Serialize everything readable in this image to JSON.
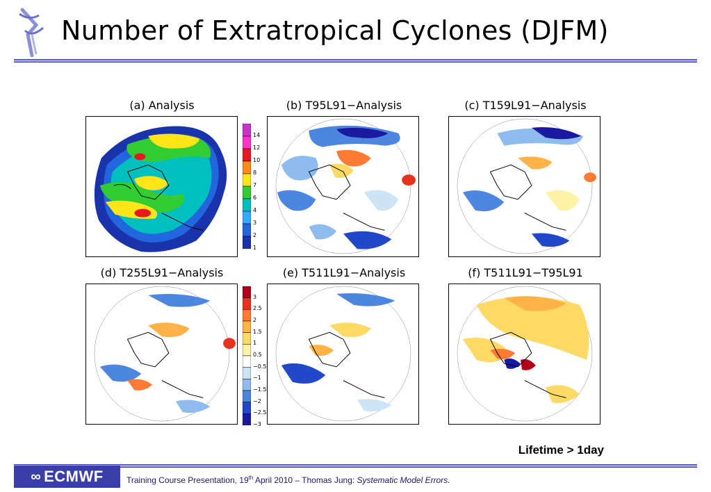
{
  "slide": {
    "title": "Number of Extratropical Cyclones (DJFM)"
  },
  "panels": [
    {
      "title": "(a) Analysis",
      "kind": "absolute"
    },
    {
      "title": "(b) T95L91−Analysis",
      "kind": "difference"
    },
    {
      "title": "(c) T159L91−Analysis",
      "kind": "difference"
    },
    {
      "title": "(d) T255L91−Analysis",
      "kind": "difference"
    },
    {
      "title": "(e) T511L91−Analysis",
      "kind": "difference"
    },
    {
      "title": "(f) T511L91−T95L91",
      "kind": "difference"
    }
  ],
  "colorbar_top": {
    "labels": [
      "14",
      "12",
      "10",
      "8",
      "7",
      "6",
      "4",
      "3",
      "2",
      "1"
    ],
    "colors": [
      "#cc33cc",
      "#ff33cc",
      "#e8181e",
      "#ff8c1a",
      "#ffe61a",
      "#33cc33",
      "#00bfbf",
      "#33aaff",
      "#2266dd",
      "#1a33aa"
    ]
  },
  "colorbar_bottom": {
    "labels": [
      "3",
      "2.5",
      "2",
      "1.5",
      "1",
      "0.5",
      "−0.5",
      "−1",
      "−1.5",
      "−2",
      "−2.5",
      "−3"
    ],
    "colors": [
      "#b3001a",
      "#e8321e",
      "#ff7a33",
      "#ffb347",
      "#ffd966",
      "#fff2a6",
      "#ffffff",
      "#cde4f7",
      "#8fbcee",
      "#4d86e0",
      "#2247c8",
      "#1a1aa0"
    ]
  },
  "annotation": {
    "lifetime": "Lifetime > 1day"
  },
  "footer": {
    "logo_text": "ECMWF",
    "prefix": "Training Course Presentation, 19",
    "sup": "th",
    "middle": " April 2010 – Thomas Jung: ",
    "italic": "Systematic Model Errors."
  }
}
